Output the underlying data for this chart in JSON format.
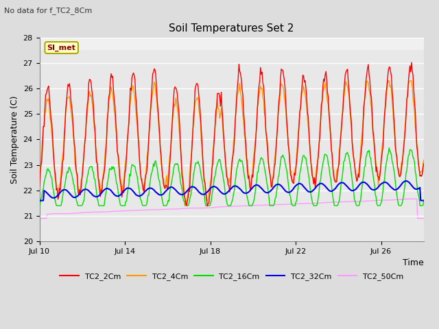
{
  "title": "Soil Temperatures Set 2",
  "subtitle": "No data for f_TC2_8Cm",
  "ylabel": "Soil Temperature (C)",
  "xlabel": "Time",
  "ylim": [
    20.0,
    28.0
  ],
  "yticks": [
    20.0,
    21.0,
    22.0,
    23.0,
    24.0,
    25.0,
    26.0,
    27.0,
    28.0
  ],
  "xtick_labels": [
    "Jul 10",
    "Jul 14",
    "Jul 18",
    "Jul 22",
    "Jul 26"
  ],
  "xtick_pos": [
    0,
    4,
    8,
    12,
    16
  ],
  "xlim": [
    0,
    18
  ],
  "legend_entries": [
    "TC2_2Cm",
    "TC2_4Cm",
    "TC2_16Cm",
    "TC2_32Cm",
    "TC2_50Cm"
  ],
  "colors": {
    "TC2_2Cm": "#ff0000",
    "TC2_4Cm": "#ff9900",
    "TC2_16Cm": "#00dd00",
    "TC2_32Cm": "#0000ee",
    "TC2_50Cm": "#ff99ff"
  },
  "line_widths": {
    "TC2_2Cm": 1.0,
    "TC2_4Cm": 1.0,
    "TC2_16Cm": 1.0,
    "TC2_32Cm": 1.5,
    "TC2_50Cm": 1.0
  },
  "fig_bg_color": "#dddddd",
  "plot_bg_color": "#e8e8e8",
  "upper_band_color": "#f0f0f0",
  "upper_band_threshold": 27.5,
  "grid_color": "#ffffff",
  "grid_linewidth": 1.0,
  "annotation_box": {
    "text": "SI_met",
    "fontsize": 8,
    "fontweight": "bold",
    "text_color": "#880000",
    "bg_color": "#ffffcc",
    "edge_color": "#aaaa00",
    "linewidth": 1.5
  },
  "title_fontsize": 11,
  "subtitle_fontsize": 8,
  "axis_fontsize": 9,
  "tick_fontsize": 8,
  "legend_fontsize": 8
}
